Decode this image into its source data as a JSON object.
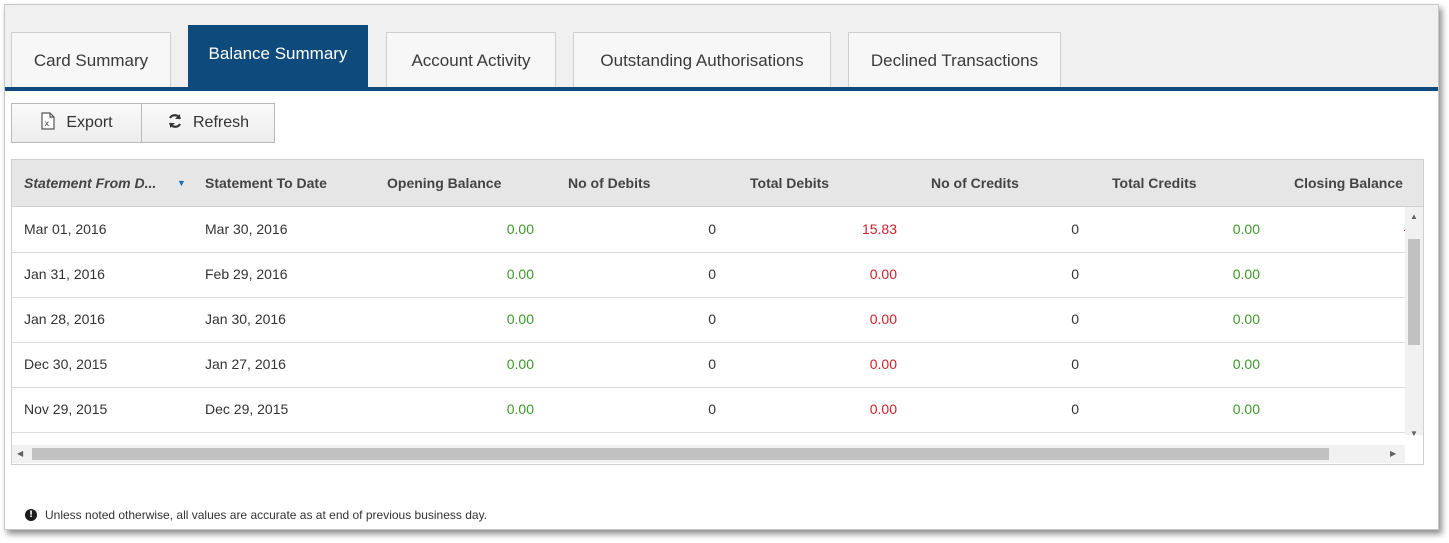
{
  "tabs": [
    {
      "label": "Card Summary"
    },
    {
      "label": "Balance Summary"
    },
    {
      "label": "Account Activity"
    },
    {
      "label": "Outstanding Authorisations"
    },
    {
      "label": "Declined Transactions"
    }
  ],
  "toolbar": {
    "export_label": "Export",
    "export_icon": "excel-export-icon",
    "refresh_label": "Refresh",
    "refresh_icon": "refresh-icon"
  },
  "table": {
    "columns": [
      "Statement From D...",
      "Statement To Date",
      "Opening Balance",
      "No of Debits",
      "Total Debits",
      "No of Credits",
      "Total Credits",
      "Closing Balance"
    ],
    "sort_icon": "sort-desc-icon",
    "rows": [
      {
        "from": "Mar 01, 2016",
        "to": "Mar 30, 2016",
        "opening": "0.00",
        "debits_no": "0",
        "debits_total": "15.83",
        "credits_no": "0",
        "credits_total": "0.00",
        "closing": "-"
      },
      {
        "from": "Jan 31, 2016",
        "to": "Feb 29, 2016",
        "opening": "0.00",
        "debits_no": "0",
        "debits_total": "0.00",
        "credits_no": "0",
        "credits_total": "0.00",
        "closing": ""
      },
      {
        "from": "Jan 28, 2016",
        "to": "Jan 30, 2016",
        "opening": "0.00",
        "debits_no": "0",
        "debits_total": "0.00",
        "credits_no": "0",
        "credits_total": "0.00",
        "closing": ""
      },
      {
        "from": "Dec 30, 2015",
        "to": "Jan 27, 2016",
        "opening": "0.00",
        "debits_no": "0",
        "debits_total": "0.00",
        "credits_no": "0",
        "credits_total": "0.00",
        "closing": ""
      },
      {
        "from": "Nov 29, 2015",
        "to": "Dec 29, 2015",
        "opening": "0.00",
        "debits_no": "0",
        "debits_total": "0.00",
        "credits_no": "0",
        "credits_total": "0.00",
        "closing": ""
      }
    ]
  },
  "footer": {
    "note": "Unless noted otherwise, all values are accurate as at end of previous business day.",
    "icon": "info-icon"
  },
  "colors": {
    "accent": "#0e4a7b",
    "positive": "#3c9a29",
    "negative": "#d0212a"
  }
}
